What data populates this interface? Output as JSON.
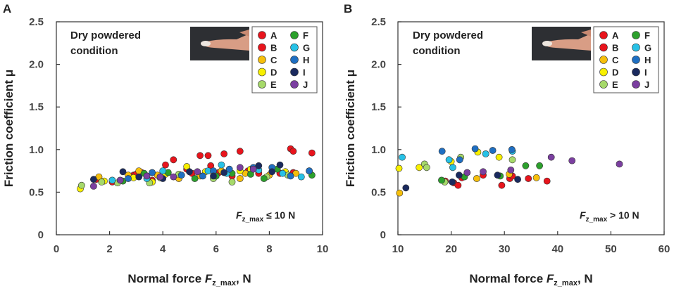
{
  "chart_data": [
    {
      "type": "scatter",
      "panel_label": "A",
      "title": "",
      "xlabel": "Normal force F",
      "xlabel_sub": "z_max",
      "xlabel_suffix": ", N",
      "ylabel": "Friction coefficient μ",
      "xlim": [
        0,
        10
      ],
      "ylim": [
        0,
        2.5
      ],
      "xticks": [
        0,
        2,
        4,
        6,
        8,
        10
      ],
      "xtick_labels": [
        "0",
        "2",
        "4",
        "6",
        "8",
        "10"
      ],
      "yticks": [
        0,
        0.5,
        1.0,
        1.5,
        2.0,
        2.5
      ],
      "ytick_labels": [
        "0",
        "0.5",
        "1.0",
        "1.5",
        "2.0",
        "2.5"
      ],
      "annotation": {
        "line1": "Dry powdered",
        "line2": "condition"
      },
      "force_label": {
        "prefix": "F",
        "sub": "z_max",
        "suffix": " ≤ 10 N"
      },
      "legend": {
        "placement": "top-right",
        "entries": [
          "A",
          "B",
          "C",
          "D",
          "E",
          "F",
          "G",
          "H",
          "I",
          "J"
        ]
      },
      "series": [
        {
          "name": "A",
          "color": "#e8141c",
          "points": [
            [
              1.5,
              0.65
            ],
            [
              2.9,
              0.7
            ],
            [
              4.4,
              0.88
            ],
            [
              5.4,
              0.93
            ],
            [
              5.7,
              0.93
            ],
            [
              6.3,
              0.95
            ],
            [
              6.9,
              0.98
            ],
            [
              7.6,
              0.72
            ],
            [
              8.8,
              1.01
            ],
            [
              8.9,
              0.98
            ],
            [
              9.6,
              0.96
            ],
            [
              3.2,
              0.73
            ],
            [
              4.9,
              0.77
            ],
            [
              6.6,
              0.69
            ]
          ]
        },
        {
          "name": "B",
          "color": "#e8141c",
          "points": [
            [
              2.1,
              0.62
            ],
            [
              3.6,
              0.64
            ],
            [
              4.1,
              0.82
            ],
            [
              5.1,
              0.72
            ],
            [
              5.8,
              0.81
            ],
            [
              7.2,
              0.75
            ],
            [
              8.4,
              0.72
            ],
            [
              8.9,
              0.73
            ],
            [
              3.0,
              0.71
            ],
            [
              6.1,
              0.73
            ]
          ]
        },
        {
          "name": "C",
          "color": "#f6bf0b",
          "points": [
            [
              1.6,
              0.68
            ],
            [
              2.7,
              0.7
            ],
            [
              3.1,
              0.75
            ],
            [
              3.8,
              0.7
            ],
            [
              4.6,
              0.66
            ],
            [
              5.4,
              0.69
            ],
            [
              6.2,
              0.75
            ],
            [
              7.1,
              0.72
            ],
            [
              8.0,
              0.7
            ],
            [
              9.0,
              0.72
            ],
            [
              6.9,
              0.66
            ]
          ]
        },
        {
          "name": "D",
          "color": "#f8f000",
          "points": [
            [
              0.9,
              0.54
            ],
            [
              1.8,
              0.63
            ],
            [
              2.9,
              0.67
            ],
            [
              3.6,
              0.62
            ],
            [
              4.9,
              0.8
            ],
            [
              5.6,
              0.74
            ],
            [
              6.9,
              0.75
            ],
            [
              7.3,
              0.77
            ],
            [
              8.6,
              0.74
            ],
            [
              4.1,
              0.71
            ]
          ]
        },
        {
          "name": "E",
          "color": "#a6d96a",
          "points": [
            [
              0.95,
              0.58
            ],
            [
              1.7,
              0.62
            ],
            [
              2.3,
              0.61
            ],
            [
              3.5,
              0.61
            ],
            [
              4.6,
              0.71
            ],
            [
              5.9,
              0.66
            ],
            [
              6.6,
              0.62
            ],
            [
              8.7,
              0.7
            ],
            [
              3.9,
              0.67
            ],
            [
              7.9,
              0.68
            ]
          ]
        },
        {
          "name": "F",
          "color": "#2ca02c",
          "points": [
            [
              2.5,
              0.63
            ],
            [
              3.3,
              0.72
            ],
            [
              4.2,
              0.73
            ],
            [
              5.2,
              0.66
            ],
            [
              6.0,
              0.69
            ],
            [
              7.3,
              0.71
            ],
            [
              7.8,
              0.66
            ],
            [
              8.3,
              0.77
            ],
            [
              9.6,
              0.7
            ],
            [
              6.6,
              0.72
            ]
          ]
        },
        {
          "name": "G",
          "color": "#27c1e6",
          "points": [
            [
              2.1,
              0.64
            ],
            [
              3.4,
              0.66
            ],
            [
              4.0,
              0.75
            ],
            [
              5.7,
              0.75
            ],
            [
              6.4,
              0.72
            ],
            [
              7.6,
              0.76
            ],
            [
              8.5,
              0.72
            ],
            [
              9.2,
              0.68
            ],
            [
              9.5,
              0.75
            ],
            [
              6.2,
              0.82
            ]
          ]
        },
        {
          "name": "H",
          "color": "#1f6fc2",
          "points": [
            [
              2.7,
              0.66
            ],
            [
              3.6,
              0.73
            ],
            [
              4.7,
              0.7
            ],
            [
              5.5,
              0.69
            ],
            [
              6.5,
              0.77
            ],
            [
              7.4,
              0.79
            ],
            [
              8.1,
              0.79
            ],
            [
              9.5,
              0.75
            ],
            [
              5.9,
              0.75
            ],
            [
              8.8,
              0.69
            ]
          ]
        },
        {
          "name": "I",
          "color": "#1a2a5e",
          "points": [
            [
              1.4,
              0.65
            ],
            [
              2.5,
              0.74
            ],
            [
              3.1,
              0.68
            ],
            [
              4.0,
              0.66
            ],
            [
              5.0,
              0.74
            ],
            [
              6.3,
              0.73
            ],
            [
              7.6,
              0.81
            ],
            [
              8.4,
              0.82
            ],
            [
              8.1,
              0.74
            ],
            [
              5.9,
              0.69
            ]
          ]
        },
        {
          "name": "J",
          "color": "#7b3fa0",
          "points": [
            [
              1.4,
              0.57
            ],
            [
              2.4,
              0.64
            ],
            [
              3.9,
              0.68
            ],
            [
              4.4,
              0.68
            ],
            [
              5.3,
              0.74
            ],
            [
              6.9,
              0.79
            ],
            [
              7.4,
              0.77
            ],
            [
              3.4,
              0.69
            ]
          ]
        }
      ]
    },
    {
      "type": "scatter",
      "panel_label": "B",
      "title": "",
      "xlabel": "Normal force F",
      "xlabel_sub": "z_max",
      "xlabel_suffix": ", N",
      "ylabel": "Friction coefficient μ",
      "xlim": [
        10,
        60
      ],
      "ylim": [
        0,
        2.5
      ],
      "xticks": [
        10,
        20,
        30,
        40,
        50,
        60
      ],
      "xtick_labels": [
        "10",
        "20",
        "30",
        "40",
        "50",
        "60"
      ],
      "yticks": [
        0,
        0.5,
        1.0,
        1.5,
        2.0,
        2.5
      ],
      "ytick_labels": [
        "0",
        "0.5",
        "1.0",
        "1.5",
        "2.0",
        "2.5"
      ],
      "annotation": {
        "line1": "Dry powdered",
        "line2": "condition"
      },
      "force_label": {
        "prefix": "F",
        "sub": "z_max",
        "suffix": " > 10 N"
      },
      "legend": {
        "placement": "top-right",
        "entries": [
          "A",
          "B",
          "C",
          "D",
          "E",
          "F",
          "G",
          "H",
          "I",
          "J"
        ]
      },
      "series": [
        {
          "name": "A",
          "color": "#e8141c",
          "points": [
            [
              20.5,
              0.61
            ],
            [
              22.0,
              0.67
            ],
            [
              29.5,
              0.58
            ],
            [
              31.0,
              0.66
            ],
            [
              38.0,
              0.63
            ]
          ]
        },
        {
          "name": "B",
          "color": "#e8141c",
          "points": [
            [
              21.3,
              0.58
            ],
            [
              26.0,
              0.7
            ],
            [
              31.5,
              0.69
            ],
            [
              34.5,
              0.66
            ],
            [
              18.9,
              0.63
            ]
          ]
        },
        {
          "name": "C",
          "color": "#f6bf0b",
          "points": [
            [
              10.3,
              0.49
            ],
            [
              24.8,
              0.66
            ],
            [
              30.9,
              0.71
            ],
            [
              36.0,
              0.67
            ]
          ]
        },
        {
          "name": "D",
          "color": "#f8f000",
          "points": [
            [
              10.2,
              0.78
            ],
            [
              14.0,
              0.79
            ],
            [
              25.0,
              0.97
            ],
            [
              29.0,
              0.91
            ],
            [
              20.0,
              0.86
            ]
          ]
        },
        {
          "name": "E",
          "color": "#a6d96a",
          "points": [
            [
              15.0,
              0.83
            ],
            [
              21.8,
              0.91
            ],
            [
              31.5,
              0.88
            ],
            [
              15.4,
              0.79
            ],
            [
              18.8,
              0.62
            ]
          ]
        },
        {
          "name": "F",
          "color": "#2ca02c",
          "points": [
            [
              18.2,
              0.64
            ],
            [
              29.2,
              0.69
            ],
            [
              34.0,
              0.81
            ],
            [
              36.6,
              0.81
            ],
            [
              22.5,
              0.68
            ]
          ]
        },
        {
          "name": "G",
          "color": "#27c1e6",
          "points": [
            [
              10.8,
              0.91
            ],
            [
              19.6,
              0.88
            ],
            [
              26.5,
              0.95
            ],
            [
              31.5,
              0.98
            ],
            [
              20.3,
              0.79
            ]
          ]
        },
        {
          "name": "H",
          "color": "#1f6fc2",
          "points": [
            [
              18.3,
              0.98
            ],
            [
              24.5,
              1.01
            ],
            [
              27.8,
              0.99
            ],
            [
              31.4,
              1.0
            ],
            [
              21.6,
              0.88
            ]
          ]
        },
        {
          "name": "I",
          "color": "#1a2a5e",
          "points": [
            [
              11.5,
              0.55
            ],
            [
              20.2,
              0.62
            ],
            [
              21.5,
              0.7
            ],
            [
              28.7,
              0.7
            ],
            [
              32.5,
              0.65
            ]
          ]
        },
        {
          "name": "J",
          "color": "#7b3fa0",
          "points": [
            [
              26.0,
              0.74
            ],
            [
              31.2,
              0.76
            ],
            [
              38.8,
              0.91
            ],
            [
              42.7,
              0.87
            ],
            [
              51.6,
              0.83
            ],
            [
              23.0,
              0.73
            ]
          ]
        }
      ]
    }
  ]
}
